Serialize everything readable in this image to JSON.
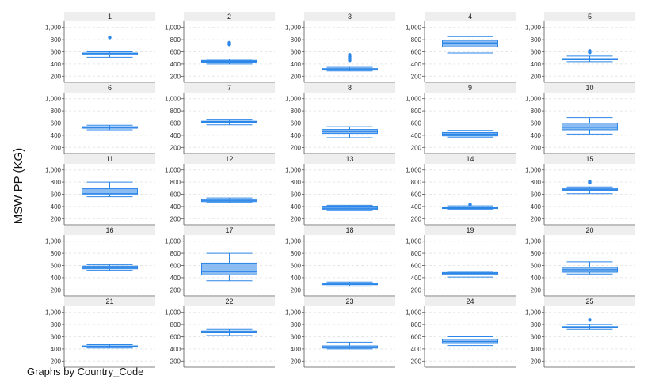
{
  "chart_data": {
    "type": "boxplot",
    "ylabel": "MSW PP (KG)",
    "note": "Graphs by Country_Code",
    "y_ticks": [
      200,
      400,
      600,
      800,
      1000
    ],
    "y_tick_labels": [
      "200",
      "400",
      "600",
      "800",
      "1,000"
    ],
    "ylim": [
      100,
      1100
    ],
    "grid": "dashed horizontal",
    "colors": {
      "box_fill": "#8bbcf2",
      "box_stroke": "#2b86e8",
      "strip": "#eeeeee",
      "grid": "#e6e6e6",
      "axis": "#555555"
    },
    "panels": [
      {
        "label": "1",
        "q1": 550,
        "median": 570,
        "q3": 580,
        "whisker_low": 510,
        "whisker_high": 600,
        "outliers": [
          835
        ]
      },
      {
        "label": "2",
        "q1": 430,
        "median": 445,
        "q3": 460,
        "whisker_low": 400,
        "whisker_high": 480,
        "outliers": [
          720,
          750
        ]
      },
      {
        "label": "3",
        "q1": 300,
        "median": 310,
        "q3": 325,
        "whisker_low": 285,
        "whisker_high": 345,
        "outliers": [
          460,
          490,
          520,
          550
        ]
      },
      {
        "label": "4",
        "q1": 680,
        "median": 745,
        "q3": 790,
        "whisker_low": 580,
        "whisker_high": 850,
        "outliers": []
      },
      {
        "label": "5",
        "q1": 470,
        "median": 480,
        "q3": 490,
        "whisker_low": 440,
        "whisker_high": 530,
        "outliers": [
          590,
          615
        ]
      },
      {
        "label": "6",
        "q1": 515,
        "median": 530,
        "q3": 540,
        "whisker_low": 490,
        "whisker_high": 565,
        "outliers": []
      },
      {
        "label": "7",
        "q1": 610,
        "median": 620,
        "q3": 630,
        "whisker_low": 570,
        "whisker_high": 650,
        "outliers": []
      },
      {
        "label": "8",
        "q1": 430,
        "median": 460,
        "q3": 495,
        "whisker_low": 360,
        "whisker_high": 540,
        "outliers": []
      },
      {
        "label": "9",
        "q1": 390,
        "median": 420,
        "q3": 445,
        "whisker_low": 370,
        "whisker_high": 480,
        "outliers": []
      },
      {
        "label": "10",
        "q1": 490,
        "median": 530,
        "q3": 600,
        "whisker_low": 420,
        "whisker_high": 690,
        "outliers": []
      },
      {
        "label": "11",
        "q1": 590,
        "median": 610,
        "q3": 690,
        "whisker_low": 560,
        "whisker_high": 800,
        "outliers": []
      },
      {
        "label": "12",
        "q1": 480,
        "median": 500,
        "q3": 520,
        "whisker_low": 465,
        "whisker_high": 540,
        "outliers": []
      },
      {
        "label": "13",
        "q1": 350,
        "median": 370,
        "q3": 405,
        "whisker_low": 330,
        "whisker_high": 420,
        "outliers": []
      },
      {
        "label": "14",
        "q1": 365,
        "median": 375,
        "q3": 385,
        "whisker_low": 350,
        "whisker_high": 410,
        "outliers": [
          430
        ]
      },
      {
        "label": "15",
        "q1": 660,
        "median": 675,
        "q3": 695,
        "whisker_low": 610,
        "whisker_high": 720,
        "outliers": [
          790,
          810
        ]
      },
      {
        "label": "16",
        "q1": 545,
        "median": 565,
        "q3": 590,
        "whisker_low": 520,
        "whisker_high": 615,
        "outliers": []
      },
      {
        "label": "17",
        "q1": 445,
        "median": 500,
        "q3": 640,
        "whisker_low": 350,
        "whisker_high": 800,
        "outliers": []
      },
      {
        "label": "18",
        "q1": 285,
        "median": 295,
        "q3": 310,
        "whisker_low": 260,
        "whisker_high": 330,
        "outliers": []
      },
      {
        "label": "19",
        "q1": 450,
        "median": 470,
        "q3": 485,
        "whisker_low": 410,
        "whisker_high": 505,
        "outliers": []
      },
      {
        "label": "20",
        "q1": 490,
        "median": 530,
        "q3": 570,
        "whisker_low": 460,
        "whisker_high": 660,
        "outliers": []
      },
      {
        "label": "21",
        "q1": 430,
        "median": 440,
        "q3": 450,
        "whisker_low": 415,
        "whisker_high": 470,
        "outliers": []
      },
      {
        "label": "22",
        "q1": 665,
        "median": 680,
        "q3": 695,
        "whisker_low": 620,
        "whisker_high": 720,
        "outliers": []
      },
      {
        "label": "23",
        "q1": 415,
        "median": 430,
        "q3": 450,
        "whisker_low": 400,
        "whisker_high": 510,
        "outliers": []
      },
      {
        "label": "24",
        "q1": 490,
        "median": 520,
        "q3": 560,
        "whisker_low": 455,
        "whisker_high": 600,
        "outliers": []
      },
      {
        "label": "25",
        "q1": 745,
        "median": 755,
        "q3": 765,
        "whisker_low": 720,
        "whisker_high": 800,
        "outliers": [
          875
        ]
      }
    ]
  }
}
